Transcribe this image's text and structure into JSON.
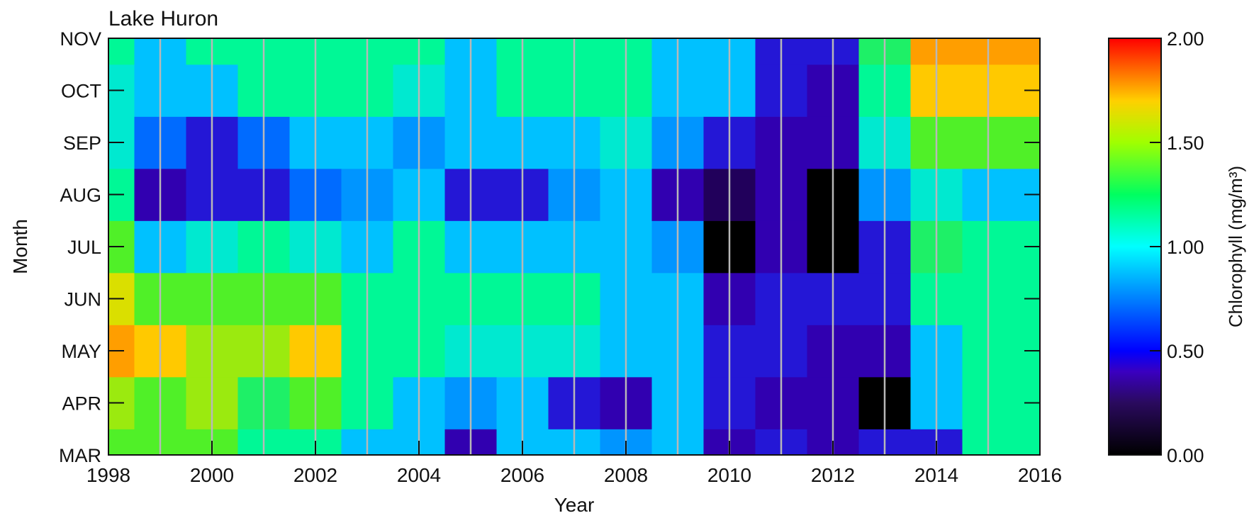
{
  "chart_data": {
    "type": "heatmap",
    "title": "Lake Huron",
    "xlabel": "Year",
    "ylabel": "Month",
    "xlim": [
      1998,
      2016
    ],
    "x_ticks": [
      "1998",
      "2000",
      "2002",
      "2004",
      "2006",
      "2008",
      "2010",
      "2012",
      "2014",
      "2016"
    ],
    "y_categories": [
      "MAR",
      "APR",
      "MAY",
      "JUN",
      "JUL",
      "AUG",
      "SEP",
      "OCT",
      "NOV"
    ],
    "colorbar": {
      "label": "Chlorophyll (mg/m³)",
      "range": [
        0,
        2
      ],
      "ticks": [
        "0.00",
        "0.50",
        "1.00",
        "1.50",
        "2.00"
      ]
    },
    "year_gridlines": [
      1999,
      2000,
      2001,
      2002,
      2003,
      2004,
      2005,
      2006,
      2007,
      2008,
      2009,
      2010,
      2011,
      2012,
      2013,
      2014,
      2015
    ],
    "grid_years": [
      1998,
      1999,
      2000,
      2001,
      2002,
      2003,
      2004,
      2005,
      2006,
      2007,
      2008,
      2009,
      2010,
      2011,
      2012,
      2013,
      2014,
      2015,
      2016
    ],
    "values": [
      [
        1.2,
        1.35,
        1.7,
        1.55,
        1.3,
        1.05,
        0.9,
        0.9,
        0.95
      ],
      [
        1.2,
        1.3,
        1.6,
        1.2,
        0.75,
        0.3,
        0.5,
        0.7,
        0.75
      ],
      [
        1.2,
        1.4,
        1.35,
        1.25,
        0.9,
        0.35,
        0.4,
        0.8,
        0.95
      ],
      [
        1.05,
        1.15,
        1.4,
        1.2,
        0.95,
        0.35,
        0.55,
        0.95,
        0.95
      ],
      [
        1.0,
        1.3,
        1.6,
        1.3,
        0.85,
        0.55,
        0.7,
        0.95,
        0.95
      ],
      [
        0.7,
        1.0,
        1.0,
        1.0,
        0.8,
        0.6,
        0.7,
        0.95,
        0.95
      ],
      [
        0.7,
        0.8,
        0.95,
        1.0,
        0.95,
        0.7,
        0.65,
        0.9,
        0.95
      ],
      [
        0.3,
        0.65,
        0.85,
        0.95,
        0.75,
        0.4,
        0.7,
        0.75,
        0.7
      ],
      [
        0.7,
        0.7,
        0.9,
        1.0,
        0.75,
        0.4,
        0.7,
        0.95,
        0.95
      ],
      [
        0.7,
        0.4,
        0.85,
        0.95,
        0.7,
        0.6,
        0.7,
        0.95,
        0.95
      ],
      [
        0.65,
        0.3,
        0.7,
        0.7,
        0.7,
        0.7,
        0.85,
        0.95,
        0.95
      ],
      [
        0.7,
        0.7,
        0.7,
        0.7,
        0.6,
        0.3,
        0.6,
        0.7,
        0.7
      ],
      [
        0.3,
        0.4,
        0.4,
        0.3,
        0.05,
        0.1,
        0.35,
        0.7,
        0.7
      ],
      [
        0.4,
        0.3,
        0.4,
        0.4,
        0.3,
        0.3,
        0.3,
        0.35,
        0.4
      ],
      [
        0.3,
        0.3,
        0.3,
        0.35,
        0.05,
        0.05,
        0.25,
        0.3,
        0.35
      ],
      [
        0.4,
        0.05,
        0.3,
        0.35,
        0.4,
        0.6,
        0.9,
        1.0,
        1.1
      ],
      [
        0.4,
        0.7,
        0.7,
        0.95,
        1.1,
        0.9,
        1.3,
        1.6,
        1.7
      ],
      [
        0.95,
        0.95,
        0.95,
        0.95,
        0.95,
        0.75,
        1.2,
        1.6,
        1.7
      ],
      [
        0.95,
        0.95,
        0.95,
        0.95,
        0.95,
        0.7,
        1.2,
        1.6,
        1.7
      ]
    ]
  }
}
